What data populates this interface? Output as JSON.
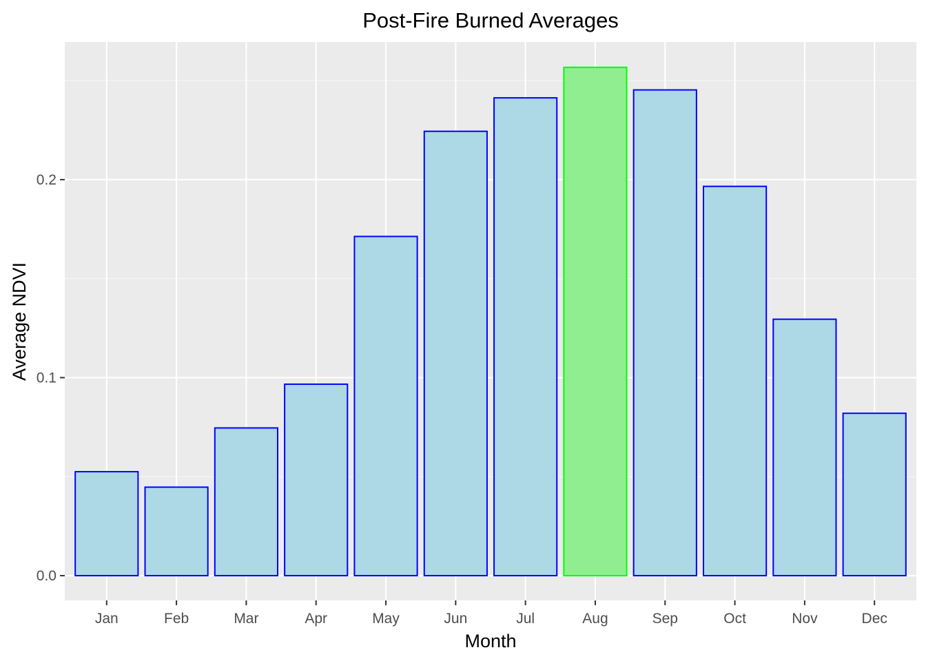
{
  "chart_data": {
    "type": "bar",
    "title": "Post-Fire Burned Averages",
    "xlabel": "Month",
    "ylabel": "Average NDVI",
    "categories": [
      "Jan",
      "Feb",
      "Mar",
      "Apr",
      "May",
      "Jun",
      "Jul",
      "Aug",
      "Sep",
      "Oct",
      "Nov",
      "Dec"
    ],
    "values": [
      0.0525,
      0.0447,
      0.0746,
      0.0967,
      0.1713,
      0.2244,
      0.2413,
      0.2567,
      0.2453,
      0.1966,
      0.1295,
      0.082
    ],
    "highlight_category": "Aug",
    "ylim": [
      -0.0125,
      0.2695
    ],
    "y_ticks": [
      0.0,
      0.1,
      0.2
    ],
    "y_tick_labels": [
      "0.0",
      "0.1",
      "0.2"
    ],
    "grid": true,
    "colors": {
      "bar_fill": "#add8e6",
      "bar_stroke": "#0000ff",
      "highlight_fill": "#90ee90",
      "highlight_stroke": "#00ff00",
      "panel_background": "#ebebeb",
      "grid_major": "#ffffff",
      "grid_minor": "#f7f7f7",
      "tick_text": "#4d4d4d",
      "tick_mark": "#333333"
    }
  }
}
